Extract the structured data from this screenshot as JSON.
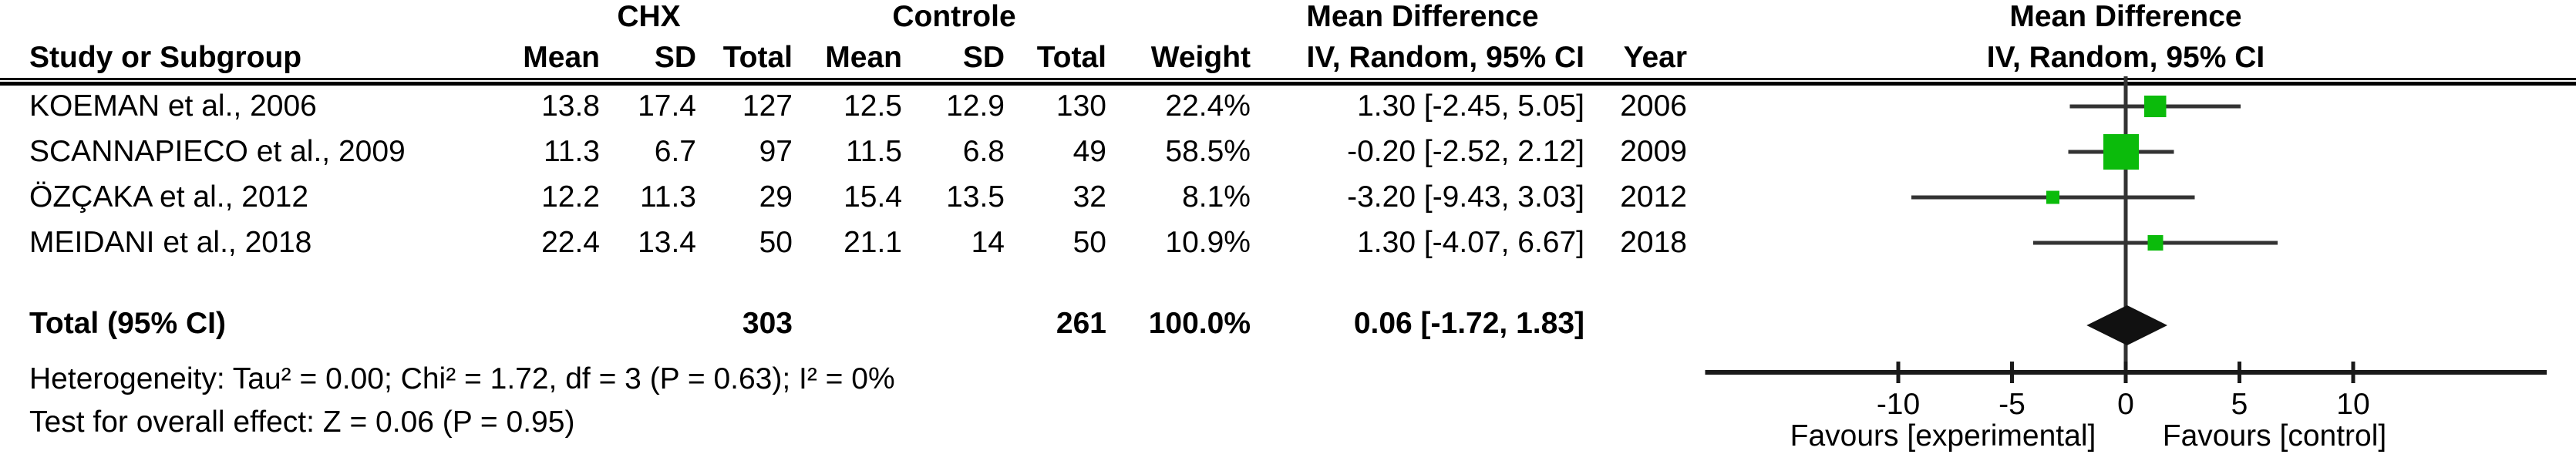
{
  "header": {
    "group_experimental": "CHX",
    "group_control": "Controle",
    "md_title": "Mean Difference",
    "md_method": "IV, Random, 95% CI",
    "study": "Study or Subgroup",
    "mean": "Mean",
    "sd": "SD",
    "total": "Total",
    "weight": "Weight",
    "year": "Year",
    "plot_title": "Mean Difference",
    "plot_method": "IV, Random, 95% CI"
  },
  "rows": [
    {
      "study": "KOEMAN et al., 2006",
      "chx_mean": "13.8",
      "chx_sd": "17.4",
      "chx_total": "127",
      "ctl_mean": "12.5",
      "ctl_sd": "12.9",
      "ctl_total": "130",
      "weight": "22.4%",
      "ci": "1.30 [-2.45, 5.05]",
      "year": "2006"
    },
    {
      "study": "SCANNAPIECO et al., 2009",
      "chx_mean": "11.3",
      "chx_sd": "6.7",
      "chx_total": "97",
      "ctl_mean": "11.5",
      "ctl_sd": "6.8",
      "ctl_total": "49",
      "weight": "58.5%",
      "ci": "-0.20 [-2.52, 2.12]",
      "year": "2009"
    },
    {
      "study": "ÖZÇAKA et al., 2012",
      "chx_mean": "12.2",
      "chx_sd": "11.3",
      "chx_total": "29",
      "ctl_mean": "15.4",
      "ctl_sd": "13.5",
      "ctl_total": "32",
      "weight": "8.1%",
      "ci": "-3.20 [-9.43, 3.03]",
      "year": "2012"
    },
    {
      "study": "MEIDANI et al., 2018",
      "chx_mean": "22.4",
      "chx_sd": "13.4",
      "chx_total": "50",
      "ctl_mean": "21.1",
      "ctl_sd": "14",
      "ctl_total": "50",
      "weight": "10.9%",
      "ci": "1.30 [-4.07, 6.67]",
      "year": "2018"
    }
  ],
  "total_row": {
    "label": "Total (95% CI)",
    "chx_total": "303",
    "ctl_total": "261",
    "weight": "100.0%",
    "ci": "0.06 [-1.72, 1.83]"
  },
  "footnotes": {
    "heterogeneity": "Heterogeneity: Tau² = 0.00; Chi² = 1.72, df = 3 (P = 0.63); I² = 0%",
    "overall_effect": "Test for overall effect: Z = 0.06 (P = 0.95)"
  },
  "axis": {
    "favours_left": "Favours [experimental]",
    "favours_right": "Favours [control]"
  },
  "chart_data": {
    "type": "forest",
    "title": "Mean Difference, IV, Random, 95% CI",
    "studies": [
      {
        "name": "KOEMAN et al., 2006",
        "md": 1.3,
        "ci_low": -2.45,
        "ci_high": 5.05,
        "weight_pct": 22.4,
        "year": 2006
      },
      {
        "name": "SCANNAPIECO et al., 2009",
        "md": -0.2,
        "ci_low": -2.52,
        "ci_high": 2.12,
        "weight_pct": 58.5,
        "year": 2009
      },
      {
        "name": "ÖZÇAKA et al., 2012",
        "md": -3.2,
        "ci_low": -9.43,
        "ci_high": 3.03,
        "weight_pct": 8.1,
        "year": 2012
      },
      {
        "name": "MEIDANI et al., 2018",
        "md": 1.3,
        "ci_low": -4.07,
        "ci_high": 6.67,
        "weight_pct": 10.9,
        "year": 2018
      }
    ],
    "total": {
      "md": 0.06,
      "ci_low": -1.72,
      "ci_high": 1.83,
      "n_experimental": 303,
      "n_control": 261,
      "weight_pct": 100.0
    },
    "heterogeneity": {
      "tau2": 0.0,
      "chi2": 1.72,
      "df": 3,
      "p": 0.63,
      "i2_pct": 0
    },
    "overall_effect": {
      "z": 0.06,
      "p": 0.95
    },
    "x_ticks": [
      -10,
      -5,
      0,
      5,
      10
    ],
    "xlim": [
      -18.5,
      18.5
    ],
    "grid": false,
    "marker_color": "#0bbb0b",
    "diamond_color": "#111111",
    "line_color": "#333333",
    "axis_color": "#1a1a1a"
  }
}
